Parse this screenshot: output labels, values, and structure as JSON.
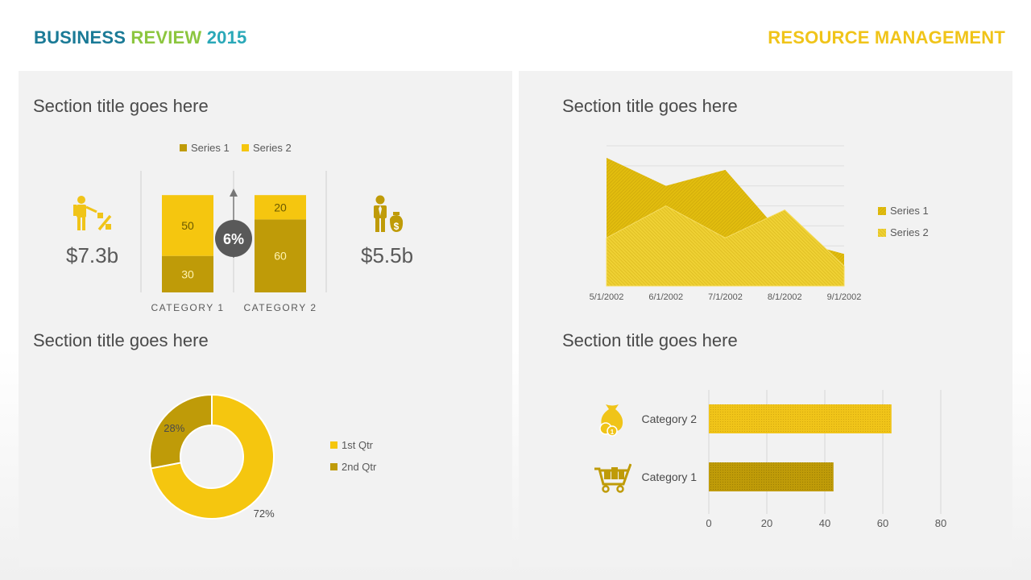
{
  "header": {
    "title_word1": "BUSINESS",
    "title_word2": "REVIEW",
    "title_word3": "2015",
    "right_title": "RESOURCE MANAGEMENT"
  },
  "colors": {
    "dark_gold": "#bf9b08",
    "yellow": "#f5c60f",
    "area_series1": "#e2bd0e",
    "area_series2": "#efd134"
  },
  "panels": {
    "top_left": {
      "title": "Section title goes here",
      "left_value": "$7.3b",
      "right_value": "$5.5b",
      "left_icon": "presenter-percent-icon",
      "right_icon": "businessman-money-bag-icon",
      "badge": "6%"
    },
    "top_right": {
      "title": "Section title goes here"
    },
    "bottom_left": {
      "title": "Section title goes here"
    },
    "bottom_right": {
      "title": "Section title goes here",
      "category_icons": [
        "shopping-cart-icon",
        "money-bag-coins-icon"
      ]
    }
  },
  "chart_data": [
    {
      "type": "bar",
      "stacked": true,
      "categories": [
        "CATEGORY 1",
        "CATEGORY 2"
      ],
      "series": [
        {
          "name": "Series 1",
          "values": [
            30,
            60
          ]
        },
        {
          "name": "Series 2",
          "values": [
            50,
            20
          ]
        }
      ],
      "legend": "top"
    },
    {
      "type": "area",
      "x": [
        "5/1/2002",
        "6/1/2002",
        "7/1/2002",
        "8/1/2002",
        "9/1/2002"
      ],
      "series": [
        {
          "name": "Series 1",
          "values": [
            32,
            25,
            29,
            12,
            8
          ]
        },
        {
          "name": "Series 2",
          "values": [
            12,
            20,
            12,
            19,
            5
          ]
        }
      ],
      "ylim": [
        0,
        35
      ],
      "legend": "right"
    },
    {
      "type": "pie",
      "donut": true,
      "labels": [
        "1st Qtr",
        "2nd Qtr"
      ],
      "values": [
        72,
        28
      ],
      "value_labels": [
        "72%",
        "28%"
      ],
      "legend": "right"
    },
    {
      "type": "bar",
      "orientation": "horizontal",
      "categories": [
        "Category 1",
        "Category 2"
      ],
      "values": [
        43,
        63
      ],
      "xlim": [
        0,
        80
      ],
      "x_ticks": [
        "0",
        "20",
        "40",
        "60",
        "80"
      ]
    }
  ]
}
